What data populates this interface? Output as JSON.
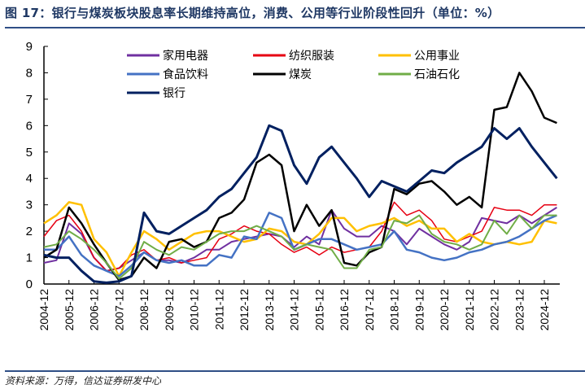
{
  "title": "图 17：银行与煤炭板块股息率长期维持高位，消费、公用等行业阶段性回升（单位：%）",
  "source": "资料来源：万得，信达证券研发中心",
  "chart_data": {
    "type": "line",
    "title": "图 17：银行与煤炭板块股息率长期维持高位，消费、公用等行业阶段性回升（单位：%）",
    "ylabel": "",
    "xlabel": "",
    "ylim": [
      0,
      9
    ],
    "yticks": [
      "0",
      "1",
      "2",
      "3",
      "4",
      "5",
      "6",
      "7",
      "8",
      "9"
    ],
    "xticks": [
      "2004-12",
      "2005-12",
      "2006-12",
      "2007-12",
      "2008-12",
      "2009-12",
      "2010-12",
      "2011-12",
      "2012-12",
      "2013-12",
      "2014-12",
      "2015-12",
      "2016-12",
      "2017-12",
      "2018-12",
      "2019-12",
      "2020-12",
      "2021-12",
      "2022-12",
      "2023-12",
      "2024-12"
    ],
    "legend_position": "top",
    "grid": false,
    "x": [
      "2004-12",
      "2005-06",
      "2005-12",
      "2006-06",
      "2006-12",
      "2007-06",
      "2007-12",
      "2008-06",
      "2008-12",
      "2009-06",
      "2009-12",
      "2010-06",
      "2010-12",
      "2011-06",
      "2011-12",
      "2012-06",
      "2012-12",
      "2013-06",
      "2013-12",
      "2014-06",
      "2014-12",
      "2015-06",
      "2015-12",
      "2016-06",
      "2016-12",
      "2017-06",
      "2017-12",
      "2018-06",
      "2018-12",
      "2019-06",
      "2019-12",
      "2020-06",
      "2020-12",
      "2021-06",
      "2021-12",
      "2022-06",
      "2022-12",
      "2023-06",
      "2023-12",
      "2024-06",
      "2024-12",
      "2025-06"
    ],
    "series": [
      {
        "name": "家用电器",
        "color": "#7030A0",
        "width": 2,
        "values": [
          0.8,
          0.9,
          2.3,
          1.9,
          1.0,
          0.5,
          0.6,
          0.9,
          1.2,
          0.9,
          0.9,
          0.8,
          1.0,
          1.3,
          1.3,
          1.6,
          1.7,
          1.8,
          1.9,
          1.8,
          1.4,
          1.8,
          1.5,
          2.8,
          2.1,
          1.8,
          1.8,
          2.2,
          2.0,
          1.5,
          2.1,
          1.8,
          1.5,
          1.3,
          1.6,
          2.5,
          2.4,
          2.3,
          2.6,
          2.3,
          2.6,
          2.9
        ]
      },
      {
        "name": "纺织服装",
        "color": "#E60012",
        "width": 1.5,
        "values": [
          1.8,
          2.4,
          2.6,
          2.0,
          1.0,
          0.5,
          0.6,
          1.1,
          1.3,
          0.9,
          1.0,
          0.8,
          0.9,
          1.0,
          1.7,
          1.9,
          2.2,
          2.0,
          1.9,
          1.5,
          1.2,
          1.4,
          1.1,
          1.4,
          1.2,
          1.3,
          1.4,
          2.0,
          3.1,
          2.6,
          2.8,
          2.4,
          1.7,
          1.6,
          1.8,
          2.0,
          2.9,
          2.8,
          2.8,
          2.6,
          3.0,
          3.0
        ]
      },
      {
        "name": "公用事业",
        "color": "#FFC000",
        "width": 2.5,
        "values": [
          2.3,
          2.6,
          3.1,
          3.0,
          1.7,
          1.2,
          0.3,
          1.2,
          2.0,
          1.7,
          1.3,
          1.6,
          1.9,
          2.0,
          2.0,
          1.8,
          1.6,
          1.7,
          2.1,
          2.0,
          1.6,
          1.5,
          1.9,
          2.5,
          2.5,
          2.0,
          2.2,
          2.3,
          2.5,
          2.2,
          2.4,
          2.1,
          2.1,
          1.6,
          1.9,
          1.6,
          1.5,
          1.6,
          1.5,
          1.6,
          2.4,
          2.3
        ]
      },
      {
        "name": "食品饮料",
        "color": "#4472C4",
        "width": 2.5,
        "values": [
          1.3,
          1.3,
          1.8,
          1.1,
          0.7,
          0.5,
          0.3,
          0.7,
          1.2,
          0.9,
          0.8,
          0.9,
          0.7,
          0.7,
          1.1,
          1.0,
          1.8,
          1.7,
          2.7,
          2.5,
          1.3,
          1.5,
          1.7,
          1.7,
          1.5,
          1.3,
          1.4,
          1.5,
          2.0,
          1.3,
          1.2,
          1.0,
          0.9,
          1.0,
          1.2,
          1.3,
          1.5,
          1.6,
          1.8,
          2.1,
          2.4,
          2.6
        ]
      },
      {
        "name": "煤炭",
        "color": "#000000",
        "width": 2.5,
        "values": [
          1.0,
          1.3,
          2.9,
          2.3,
          1.5,
          0.8,
          0.15,
          0.3,
          1.0,
          0.6,
          1.6,
          1.7,
          1.4,
          1.6,
          2.5,
          2.7,
          3.2,
          4.6,
          4.9,
          4.5,
          2.0,
          3.0,
          2.2,
          2.8,
          0.8,
          0.7,
          1.2,
          1.4,
          3.6,
          3.4,
          3.8,
          3.9,
          3.5,
          3.0,
          3.3,
          2.9,
          6.6,
          6.7,
          8.0,
          7.3,
          6.3,
          6.1
        ]
      },
      {
        "name": "石油石化",
        "color": "#70AD47",
        "width": 2,
        "values": [
          1.4,
          1.5,
          2.0,
          1.7,
          1.3,
          0.8,
          0.2,
          0.6,
          1.6,
          1.3,
          1.1,
          1.4,
          1.3,
          1.6,
          1.9,
          2.0,
          2.0,
          2.2,
          2.0,
          1.8,
          1.3,
          1.5,
          1.4,
          1.3,
          0.6,
          0.6,
          1.3,
          1.4,
          2.4,
          2.3,
          2.6,
          1.9,
          1.6,
          1.5,
          1.3,
          1.5,
          2.4,
          1.9,
          2.6,
          2.1,
          2.6,
          2.6
        ]
      },
      {
        "name": "银行",
        "color": "#002060",
        "width": 3,
        "values": [
          1.1,
          1.0,
          1.0,
          0.5,
          0.1,
          0.05,
          0.1,
          0.3,
          2.7,
          2.0,
          1.9,
          2.2,
          2.5,
          2.8,
          3.3,
          3.6,
          4.2,
          4.8,
          6.0,
          5.8,
          4.5,
          3.8,
          4.8,
          5.2,
          4.6,
          4.0,
          3.3,
          3.9,
          3.7,
          3.5,
          3.9,
          4.3,
          4.2,
          4.6,
          4.9,
          5.2,
          5.9,
          5.5,
          5.9,
          5.2,
          4.6,
          4.0
        ]
      }
    ]
  }
}
